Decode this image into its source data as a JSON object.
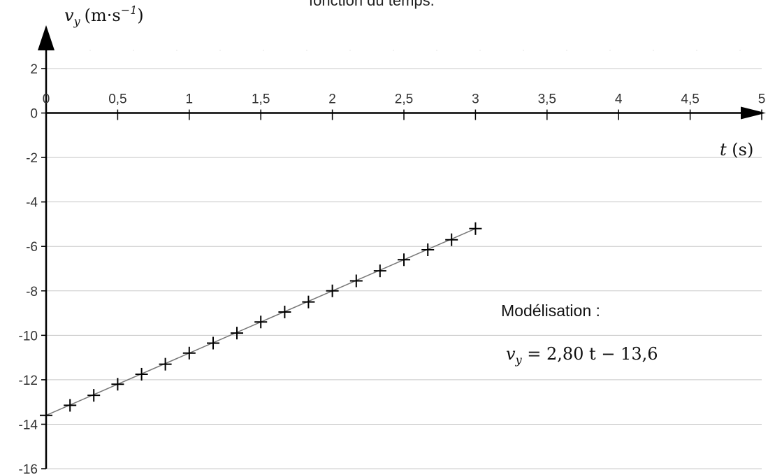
{
  "caption_fragment": "fonction du temps.",
  "chart_data": {
    "type": "scatter",
    "title": "",
    "y_axis": {
      "symbol": "v",
      "subscript": "y",
      "unit": "(m·s",
      "exponent": "−1",
      "close": ")"
    },
    "x_axis": {
      "symbol": "t",
      "unit": " (s)"
    },
    "xlim": [
      0,
      5
    ],
    "ylim": [
      -16,
      2
    ],
    "x_ticks": [
      0,
      0.5,
      1,
      1.5,
      2,
      2.5,
      3,
      3.5,
      4,
      4.5,
      5
    ],
    "x_tick_labels": [
      "0",
      "0,5",
      "1",
      "1,5",
      "2",
      "2,5",
      "3",
      "3,5",
      "4",
      "4,5",
      "5"
    ],
    "y_ticks": [
      2,
      0,
      -2,
      -4,
      -6,
      -8,
      -10,
      -12,
      -14,
      -16
    ],
    "y_tick_labels": [
      "2",
      "0",
      "-2",
      "-4",
      "-6",
      "-8",
      "-10",
      "-12",
      "-14",
      "-16"
    ],
    "grid": {
      "horizontal": true,
      "vertical": false
    },
    "series": [
      {
        "marker": "plus",
        "x": [
          0,
          0.167,
          0.333,
          0.5,
          0.667,
          0.833,
          1.0,
          1.167,
          1.333,
          1.5,
          1.667,
          1.833,
          2.0,
          2.167,
          2.333,
          2.5,
          2.667,
          2.833,
          3.0
        ],
        "y": [
          -13.6,
          -13.15,
          -12.7,
          -12.2,
          -11.75,
          -11.3,
          -10.8,
          -10.35,
          -9.9,
          -9.4,
          -8.95,
          -8.5,
          -8.0,
          -7.55,
          -7.1,
          -6.6,
          -6.15,
          -5.7,
          -5.2
        ]
      }
    ],
    "model": {
      "label": "Modélisation :",
      "equation_lhs": "v",
      "equation_sub": "y",
      "equation_rhs": " = 2,80 t − 13,6",
      "slope": 2.8,
      "intercept": -13.6,
      "x_range": [
        0,
        3
      ]
    }
  },
  "colors": {
    "grid": "#c8c8c8",
    "axis": "#000000",
    "line": "#777777",
    "marker": "#000000"
  }
}
